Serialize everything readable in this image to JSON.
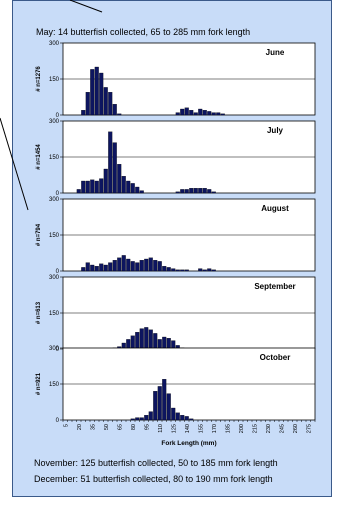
{
  "header_note": "May:  14 butterfish collected, 65 to 285 mm fork length",
  "footer_notes": [
    "November:  125 butterfish collected, 50 to 185 mm fork length",
    "December:  51 butterfish collected, 80 to 190 mm fork length"
  ],
  "chart_data": [
    {
      "type": "bar",
      "title": "June",
      "ylabel": "# n=1276",
      "ylim": [
        0,
        300
      ],
      "y_ticks": [
        0,
        150,
        300
      ],
      "grid": true,
      "x": [
        5,
        10,
        15,
        20,
        25,
        30,
        35,
        40,
        45,
        50,
        55,
        60,
        65,
        70,
        75,
        80,
        85,
        90,
        95,
        100,
        105,
        110,
        115,
        120,
        125,
        130,
        135,
        140,
        145,
        150,
        155,
        160,
        165,
        170,
        175,
        180,
        185,
        190,
        195,
        200,
        205,
        210,
        215,
        220,
        225,
        230,
        235,
        240,
        245,
        250,
        255,
        260,
        265,
        270,
        275,
        280
      ],
      "values": [
        0,
        0,
        0,
        0,
        20,
        95,
        190,
        200,
        175,
        115,
        95,
        45,
        5,
        0,
        0,
        0,
        0,
        0,
        0,
        0,
        0,
        0,
        0,
        0,
        0,
        10,
        25,
        30,
        20,
        10,
        25,
        20,
        15,
        10,
        10,
        5,
        0,
        0,
        0,
        0,
        0,
        0,
        0,
        0,
        0,
        0,
        0,
        0,
        0,
        0,
        0,
        0,
        0,
        0,
        0,
        0
      ],
      "color": "#0d1560"
    },
    {
      "type": "bar",
      "title": "July",
      "ylabel": "# n=1454",
      "ylim": [
        0,
        300
      ],
      "y_ticks": [
        0,
        150,
        300
      ],
      "grid": true,
      "x": [
        5,
        10,
        15,
        20,
        25,
        30,
        35,
        40,
        45,
        50,
        55,
        60,
        65,
        70,
        75,
        80,
        85,
        90,
        95,
        100,
        105,
        110,
        115,
        120,
        125,
        130,
        135,
        140,
        145,
        150,
        155,
        160,
        165,
        170,
        175,
        180,
        185,
        190,
        195,
        200,
        205,
        210,
        215,
        220,
        225,
        230,
        235,
        240,
        245,
        250,
        255,
        260,
        265,
        270,
        275,
        280
      ],
      "values": [
        0,
        0,
        0,
        15,
        50,
        50,
        55,
        50,
        60,
        100,
        255,
        210,
        120,
        70,
        50,
        40,
        25,
        10,
        0,
        0,
        0,
        0,
        0,
        0,
        0,
        5,
        15,
        15,
        20,
        20,
        20,
        20,
        15,
        5,
        0,
        0,
        0,
        0,
        0,
        0,
        0,
        0,
        0,
        0,
        0,
        0,
        0,
        0,
        0,
        0,
        0,
        0,
        0,
        0,
        0,
        0
      ],
      "color": "#0d1560"
    },
    {
      "type": "bar",
      "title": "August",
      "ylabel": "# n=794",
      "ylim": [
        0,
        300
      ],
      "y_ticks": [
        0,
        150,
        300
      ],
      "grid": true,
      "x": [
        5,
        10,
        15,
        20,
        25,
        30,
        35,
        40,
        45,
        50,
        55,
        60,
        65,
        70,
        75,
        80,
        85,
        90,
        95,
        100,
        105,
        110,
        115,
        120,
        125,
        130,
        135,
        140,
        145,
        150,
        155,
        160,
        165,
        170,
        175,
        180,
        185,
        190,
        195,
        200,
        205,
        210,
        215,
        220,
        225,
        230,
        235,
        240,
        245,
        250,
        255,
        260,
        265,
        270,
        275,
        280
      ],
      "values": [
        0,
        0,
        0,
        0,
        15,
        35,
        25,
        20,
        30,
        25,
        35,
        45,
        55,
        65,
        50,
        40,
        35,
        45,
        50,
        55,
        45,
        40,
        20,
        15,
        10,
        5,
        5,
        5,
        0,
        0,
        10,
        5,
        10,
        5,
        0,
        0,
        0,
        0,
        0,
        0,
        0,
        0,
        0,
        0,
        0,
        0,
        0,
        0,
        0,
        0,
        0,
        0,
        0,
        0,
        0,
        0
      ],
      "color": "#0d1560"
    },
    {
      "type": "bar",
      "title": "September",
      "ylabel": "# n=613",
      "ylim": [
        0,
        300
      ],
      "y_ticks": [
        0,
        150,
        300
      ],
      "grid": true,
      "x": [
        5,
        10,
        15,
        20,
        25,
        30,
        35,
        40,
        45,
        50,
        55,
        60,
        65,
        70,
        75,
        80,
        85,
        90,
        95,
        100,
        105,
        110,
        115,
        120,
        125,
        130,
        135,
        140,
        145,
        150,
        155,
        160,
        165,
        170,
        175,
        180,
        185,
        190,
        195,
        200,
        205,
        210,
        215,
        220,
        225,
        230,
        235,
        240,
        245,
        250,
        255,
        260,
        265,
        270,
        275,
        280
      ],
      "values": [
        0,
        0,
        0,
        0,
        0,
        0,
        0,
        0,
        0,
        0,
        0,
        5,
        10,
        25,
        40,
        55,
        70,
        85,
        90,
        80,
        65,
        40,
        50,
        45,
        35,
        15,
        5,
        0,
        0,
        0,
        0,
        0,
        0,
        0,
        0,
        0,
        0,
        0,
        0,
        0,
        0,
        0,
        0,
        0,
        0,
        0,
        0,
        0,
        0,
        0,
        0,
        0,
        0,
        0,
        0,
        0
      ],
      "color": "#0d1560"
    },
    {
      "type": "bar",
      "title": "October",
      "ylabel": "# n=921",
      "ylim": [
        0,
        300
      ],
      "y_ticks": [
        0,
        150,
        300
      ],
      "grid": true,
      "xlabel": "Fork Length (mm)",
      "x_tick_labels": [
        "5",
        "20",
        "35",
        "50",
        "65",
        "80",
        "95",
        "110",
        "125",
        "140",
        "155",
        "170",
        "185",
        "200",
        "215",
        "230",
        "245",
        "260",
        "275"
      ],
      "x": [
        5,
        10,
        15,
        20,
        25,
        30,
        35,
        40,
        45,
        50,
        55,
        60,
        65,
        70,
        75,
        80,
        85,
        90,
        95,
        100,
        105,
        110,
        115,
        120,
        125,
        130,
        135,
        140,
        145,
        150,
        155,
        160,
        165,
        170,
        175,
        180,
        185,
        190,
        195,
        200,
        205,
        210,
        215,
        220,
        225,
        230,
        235,
        240,
        245,
        250,
        255,
        260,
        265,
        270,
        275,
        280
      ],
      "values": [
        0,
        0,
        0,
        0,
        0,
        0,
        0,
        0,
        0,
        0,
        0,
        0,
        0,
        0,
        0,
        5,
        10,
        10,
        20,
        35,
        120,
        140,
        170,
        110,
        50,
        30,
        20,
        15,
        5,
        0,
        0,
        0,
        0,
        0,
        0,
        0,
        0,
        0,
        0,
        0,
        0,
        0,
        0,
        0,
        0,
        0,
        0,
        0,
        0,
        0,
        0,
        0,
        0,
        0,
        0,
        0
      ],
      "color": "#0d1560"
    }
  ]
}
